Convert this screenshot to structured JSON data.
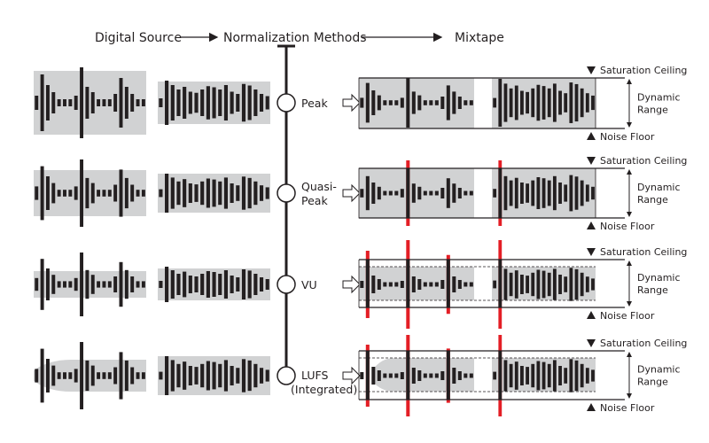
{
  "header": {
    "source": "Digital Source",
    "methods": "Normalization Methods",
    "output": "Mixtape"
  },
  "methods": [
    {
      "label_lines": [
        "Peak"
      ]
    },
    {
      "label_lines": [
        "Quasi-",
        "Peak"
      ]
    },
    {
      "label_lines": [
        "VU"
      ]
    },
    {
      "label_lines": [
        "LUFS",
        "(Integrated)"
      ]
    }
  ],
  "mixtape_labels": {
    "ceiling": "Saturation Ceiling",
    "range_lines": [
      "Dynamic",
      "Range"
    ],
    "floor": "Noise Floor"
  },
  "colors": {
    "bar": "#231f20",
    "box": "#d1d2d3",
    "overflow": "#e31e25",
    "line": "#231f20"
  }
}
